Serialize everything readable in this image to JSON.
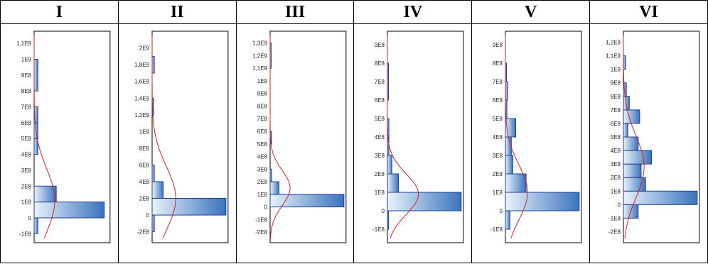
{
  "chart_data": [
    {
      "type": "histogram",
      "title": "I",
      "ticks": [
        -100000000,
        0,
        100000000,
        200000000,
        300000000,
        400000000,
        500000000,
        600000000,
        700000000,
        800000000,
        900000000,
        1000000000,
        1100000000
      ],
      "tick_labels": [
        "-1E8",
        "0",
        "1E8",
        "2E8",
        "3E8",
        "4E8",
        "5E8",
        "6E8",
        "7E8",
        "8E8",
        "9E8",
        "1E9",
        "1,1E9"
      ],
      "ylim": [
        -130000000,
        1150000000
      ],
      "bins": [
        {
          "low": -100000000,
          "high": 0,
          "count": 0.05
        },
        {
          "low": 0,
          "high": 100000000,
          "count": 0.95
        },
        {
          "low": 100000000,
          "high": 200000000,
          "count": 0.3
        },
        {
          "low": 400000000,
          "high": 500000000,
          "count": 0.05
        },
        {
          "low": 500000000,
          "high": 600000000,
          "count": 0.05
        },
        {
          "low": 600000000,
          "high": 700000000,
          "count": 0.05
        },
        {
          "low": 800000000,
          "high": 1000000000,
          "count": 0.05
        }
      ],
      "curve": {
        "mean": 110000000,
        "sd": 200000000,
        "peak": 0.28
      }
    },
    {
      "type": "histogram",
      "title": "II",
      "ticks": [
        -200000000,
        0,
        200000000,
        400000000,
        600000000,
        800000000,
        1000000000,
        1200000000,
        1400000000,
        1600000000,
        1800000000,
        2000000000
      ],
      "tick_labels": [
        "-2E8",
        "0",
        "2E8",
        "4E8",
        "6E8",
        "8E8",
        "1E9",
        "1,2E9",
        "1,4E9",
        "1,6E9",
        "1,8E9",
        "2E9"
      ],
      "ylim": [
        -280000000,
        2150000000
      ],
      "bins": [
        {
          "low": -200000000,
          "high": 0,
          "count": 0.03
        },
        {
          "low": 0,
          "high": 200000000,
          "count": 1.0
        },
        {
          "low": 200000000,
          "high": 400000000,
          "count": 0.15
        },
        {
          "low": 400000000,
          "high": 600000000,
          "count": 0.03
        },
        {
          "low": 1200000000,
          "high": 1400000000,
          "count": 0.02
        },
        {
          "low": 1700000000,
          "high": 1900000000,
          "count": 0.03
        }
      ],
      "curve": {
        "mean": 200000000,
        "sd": 380000000,
        "peak": 0.32
      }
    },
    {
      "type": "histogram",
      "title": "III",
      "ticks": [
        -200000000,
        -100000000,
        0,
        100000000,
        200000000,
        300000000,
        400000000,
        500000000,
        600000000,
        700000000,
        800000000,
        900000000,
        1000000000,
        1100000000,
        1200000000,
        1300000000
      ],
      "tick_labels": [
        "-2E8",
        "-1E8",
        "0",
        "1E8",
        "2E8",
        "3E8",
        "4E8",
        "5E8",
        "6E8",
        "7E8",
        "8E8",
        "9E8",
        "1E9",
        "1,1E9",
        "1,2E9",
        "1,3E9"
      ],
      "ylim": [
        -250000000,
        1360000000
      ],
      "bins": [
        {
          "low": 0,
          "high": 100000000,
          "count": 1.0
        },
        {
          "low": 100000000,
          "high": 200000000,
          "count": 0.12
        },
        {
          "low": 200000000,
          "high": 300000000,
          "count": 0.02
        },
        {
          "low": 500000000,
          "high": 600000000,
          "count": 0.02
        },
        {
          "low": 1100000000,
          "high": 1300000000,
          "count": 0.01
        }
      ],
      "curve": {
        "mean": 150000000,
        "sd": 140000000,
        "peak": 0.27
      }
    },
    {
      "type": "histogram",
      "title": "IV",
      "ticks": [
        -100000000,
        0,
        100000000,
        200000000,
        300000000,
        400000000,
        500000000,
        600000000,
        700000000,
        800000000,
        900000000
      ],
      "tick_labels": [
        "-1E8",
        "0",
        "1E8",
        "2E8",
        "3E8",
        "4E8",
        "5E8",
        "6E8",
        "7E8",
        "8E8",
        "9E8"
      ],
      "ylim": [
        -150000000,
        950000000
      ],
      "bins": [
        {
          "low": -100000000,
          "high": 0,
          "count": 0.01
        },
        {
          "low": 0,
          "high": 100000000,
          "count": 1.0
        },
        {
          "low": 100000000,
          "high": 200000000,
          "count": 0.15
        },
        {
          "low": 200000000,
          "high": 300000000,
          "count": 0.06
        },
        {
          "low": 300000000,
          "high": 400000000,
          "count": 0.02
        },
        {
          "low": 400000000,
          "high": 500000000,
          "count": 0.02
        },
        {
          "low": 600000000,
          "high": 800000000,
          "count": 0.01
        }
      ],
      "curve": {
        "mean": 90000000,
        "sd": 110000000,
        "peak": 0.42
      }
    },
    {
      "type": "histogram",
      "title": "V",
      "ticks": [
        -100000000,
        0,
        100000000,
        200000000,
        300000000,
        400000000,
        500000000,
        600000000,
        700000000,
        800000000,
        900000000
      ],
      "tick_labels": [
        "-1E8",
        "0",
        "1E8",
        "2E8",
        "3E8",
        "4E8",
        "5E8",
        "6E8",
        "7E8",
        "8E8",
        "9E8"
      ],
      "ylim": [
        -150000000,
        950000000
      ],
      "bins": [
        {
          "low": -100000000,
          "high": 0,
          "count": 0.06
        },
        {
          "low": 0,
          "high": 100000000,
          "count": 1.0
        },
        {
          "low": 100000000,
          "high": 200000000,
          "count": 0.28
        },
        {
          "low": 200000000,
          "high": 300000000,
          "count": 0.1
        },
        {
          "low": 300000000,
          "high": 400000000,
          "count": 0.08
        },
        {
          "low": 400000000,
          "high": 500000000,
          "count": 0.14
        },
        {
          "low": 500000000,
          "high": 600000000,
          "count": 0.02
        },
        {
          "low": 600000000,
          "high": 700000000,
          "count": 0.03
        },
        {
          "low": 700000000,
          "high": 800000000,
          "count": 0.01
        }
      ],
      "curve": {
        "mean": 100000000,
        "sd": 150000000,
        "peak": 0.3
      }
    },
    {
      "type": "histogram",
      "title": "VI",
      "ticks": [
        -200000000,
        -100000000,
        0,
        100000000,
        200000000,
        300000000,
        400000000,
        500000000,
        600000000,
        700000000,
        800000000,
        900000000,
        1000000000,
        1100000000,
        1200000000
      ],
      "tick_labels": [
        "-2E8",
        "-1E8",
        "0",
        "1E8",
        "2E8",
        "3E8",
        "4E8",
        "5E8",
        "6E8",
        "7E8",
        "8E8",
        "9E8",
        "1E9",
        "1,1E9",
        "1,2E9"
      ],
      "ylim": [
        -250000000,
        1250000000
      ],
      "bins": [
        {
          "low": -100000000,
          "high": 0,
          "count": 0.2
        },
        {
          "low": 0,
          "high": 100000000,
          "count": 1.0
        },
        {
          "low": 100000000,
          "high": 200000000,
          "count": 0.3
        },
        {
          "low": 200000000,
          "high": 300000000,
          "count": 0.24
        },
        {
          "low": 300000000,
          "high": 400000000,
          "count": 0.38
        },
        {
          "low": 400000000,
          "high": 500000000,
          "count": 0.2
        },
        {
          "low": 500000000,
          "high": 600000000,
          "count": 0.06
        },
        {
          "low": 600000000,
          "high": 700000000,
          "count": 0.22
        },
        {
          "low": 700000000,
          "high": 800000000,
          "count": 0.08
        },
        {
          "low": 800000000,
          "high": 900000000,
          "count": 0.04
        },
        {
          "low": 1000000000,
          "high": 1100000000,
          "count": 0.03
        }
      ],
      "curve": {
        "mean": 280000000,
        "sd": 230000000,
        "peak": 0.28
      }
    }
  ]
}
